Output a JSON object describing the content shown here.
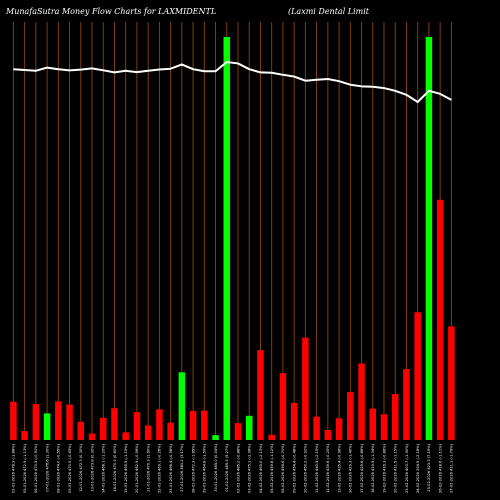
{
  "header": {
    "left_title": "MunafaSutra  Money Flow  Charts for LAXMIDENTL",
    "right_title": "(Laxmi   Dental Limit"
  },
  "chart_data": {
    "type": "bar",
    "colors": {
      "up": "#00ff00",
      "down": "#ff0000",
      "line": "#ffffff",
      "grid": "#8b4513",
      "background": "#000000"
    },
    "ylim": [
      0,
      100
    ],
    "price_ylim": [
      0,
      100
    ],
    "bars": [
      {
        "label": "02-01-2026 478.3 (-1.88%)",
        "dir": "down",
        "value": 9.5
      },
      {
        "label": "05-01-2026 472.9 (-1.13%)",
        "dir": "down",
        "value": 2.2
      },
      {
        "label": "06-01-2026 470.5 (-0.51%)",
        "dir": "down",
        "value": 8.9
      },
      {
        "label": "07-01-2026 476.6 (1.30%)",
        "dir": "up",
        "value": 6.6
      },
      {
        "label": "08-01-2026 474.0 (-0.55%)",
        "dir": "down",
        "value": 9.6
      },
      {
        "label": "09-01-2026 470.9 (-0.65%)",
        "dir": "down",
        "value": 8.8
      },
      {
        "label": "12-01-2026 472.3 (0.30%)",
        "dir": "down",
        "value": 4.5
      },
      {
        "label": "13-01-2026 473.8 (0.32%)",
        "dir": "down",
        "value": 1.6
      },
      {
        "label": "14-01-2026 468.1 (-1.20%)",
        "dir": "down",
        "value": 5.5
      },
      {
        "label": "16-01-2026 470.9 (0.60%)",
        "dir": "down",
        "value": 7.9
      },
      {
        "label": "19-01-2026 465.5 (-1.15%)",
        "dir": "down",
        "value": 1.9
      },
      {
        "label": "20-01-2026 462.9 (-0.56%)",
        "dir": "down",
        "value": 6.9
      },
      {
        "label": "21-01-2026 470.3 (1.60%)",
        "dir": "down",
        "value": 3.6
      },
      {
        "label": "22-01-2026 469.1 (-0.26%)",
        "dir": "down",
        "value": 7.6
      },
      {
        "label": "23-01-2026 466.4 (-0.58%)",
        "dir": "down",
        "value": 4.3
      },
      {
        "label": "27-01-2026 481.2 (3.17%)",
        "dir": "up",
        "value": 16.8
      },
      {
        "label": "28-01-2026 472.3 (-1.85%)",
        "dir": "down",
        "value": 7.2
      },
      {
        "label": "29-01-2026 464.8 (-1.59%)",
        "dir": "down",
        "value": 7.3
      },
      {
        "label": "30-01-2026 465.0 (0.04%)",
        "dir": "up",
        "value": 1.2
      },
      {
        "label": "01-02-2026 489.5 (5.27%)",
        "dir": "up",
        "value": 100
      },
      {
        "label": "02-02-2026 485.2 (-0.88%)",
        "dir": "down",
        "value": 4.2
      },
      {
        "label": "03-02-2026 475.1 (-2.08%)",
        "dir": "up",
        "value": 6.0
      },
      {
        "label": "04-02-2026 465.0 (-2.13%)",
        "dir": "down",
        "value": 22.3
      },
      {
        "label": "05-02-2026 459.8 (-1.12%)",
        "dir": "down",
        "value": 1.3
      },
      {
        "label": "06-02-2026 456.6 (-0.70%)",
        "dir": "down",
        "value": 16.6
      },
      {
        "label": "09-02-2026 454.4 (-0.48%)",
        "dir": "down",
        "value": 9.2
      },
      {
        "label": "10-02-2026 450.2 (-0.92%)",
        "dir": "down",
        "value": 25.4
      },
      {
        "label": "11-02-2026 440.5 (-2.15%)",
        "dir": "down",
        "value": 5.8
      },
      {
        "label": "12-02-2026 439.6 (-0.20%)",
        "dir": "down",
        "value": 2.5
      },
      {
        "label": "13-02-2026 435.4 (-0.96%)",
        "dir": "down",
        "value": 5.4
      },
      {
        "label": "16-02-2026 429.3 (-1.40%)",
        "dir": "down",
        "value": 11.9
      },
      {
        "label": "17-02-2026 425.6 (-0.86%)",
        "dir": "down",
        "value": 19.0
      },
      {
        "label": "18-02-2026 419.9 (-1.34%)",
        "dir": "down",
        "value": 7.8
      },
      {
        "label": "19-02-2026 416.3 (-0.86%)",
        "dir": "down",
        "value": 6.4
      },
      {
        "label": "20-02-2026 411.5 (-1.15%)",
        "dir": "down",
        "value": 11.4
      },
      {
        "label": "23-02-2026 403.7 (-1.90%)",
        "dir": "down",
        "value": 17.6
      },
      {
        "label": "24-02-2026 394.9 (-2.18%)",
        "dir": "down",
        "value": 31.7
      },
      {
        "label": "25-02-2026 423.3 (7.19%)",
        "dir": "up",
        "value": 100
      },
      {
        "label": "26-02-2026 418.6 (-1.11%)",
        "dir": "down",
        "value": 59.6
      },
      {
        "label": "27-02-2026 411.1 (-1.79%)",
        "dir": "down",
        "value": 28.2
      }
    ],
    "price_line": [
      88,
      87.5,
      87,
      89,
      88,
      87.3,
      87.7,
      88.5,
      87.3,
      86,
      87,
      86.2,
      87,
      87.8,
      88.3,
      91,
      88,
      86.7,
      86.7,
      92.5,
      91.6,
      88,
      86,
      85.8,
      84.5,
      83.4,
      80.8,
      81.4,
      81.9,
      80.5,
      78.3,
      77.3,
      77,
      76.2,
      74.5,
      72,
      67.5,
      74.5,
      72.6,
      68.8
    ]
  }
}
